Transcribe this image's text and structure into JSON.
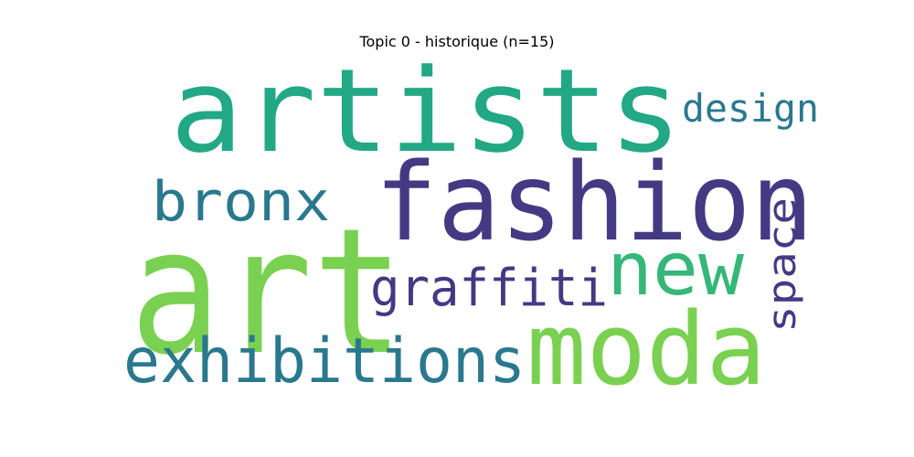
{
  "chart_data": {
    "type": "wordcloud",
    "title": "Topic 0 - historique (n=15)",
    "words": [
      {
        "text": "art",
        "color": "#7ad151"
      },
      {
        "text": "artists",
        "color": "#22a884"
      },
      {
        "text": "fashion",
        "color": "#443983"
      },
      {
        "text": "moda",
        "color": "#7ad151"
      },
      {
        "text": "new",
        "color": "#35b779"
      },
      {
        "text": "exhibitions",
        "color": "#2a788e"
      },
      {
        "text": "bronx",
        "color": "#2a788e"
      },
      {
        "text": "graffiti",
        "color": "#443983"
      },
      {
        "text": "design",
        "color": "#2a788e"
      },
      {
        "text": "space",
        "color": "#443983"
      }
    ]
  }
}
